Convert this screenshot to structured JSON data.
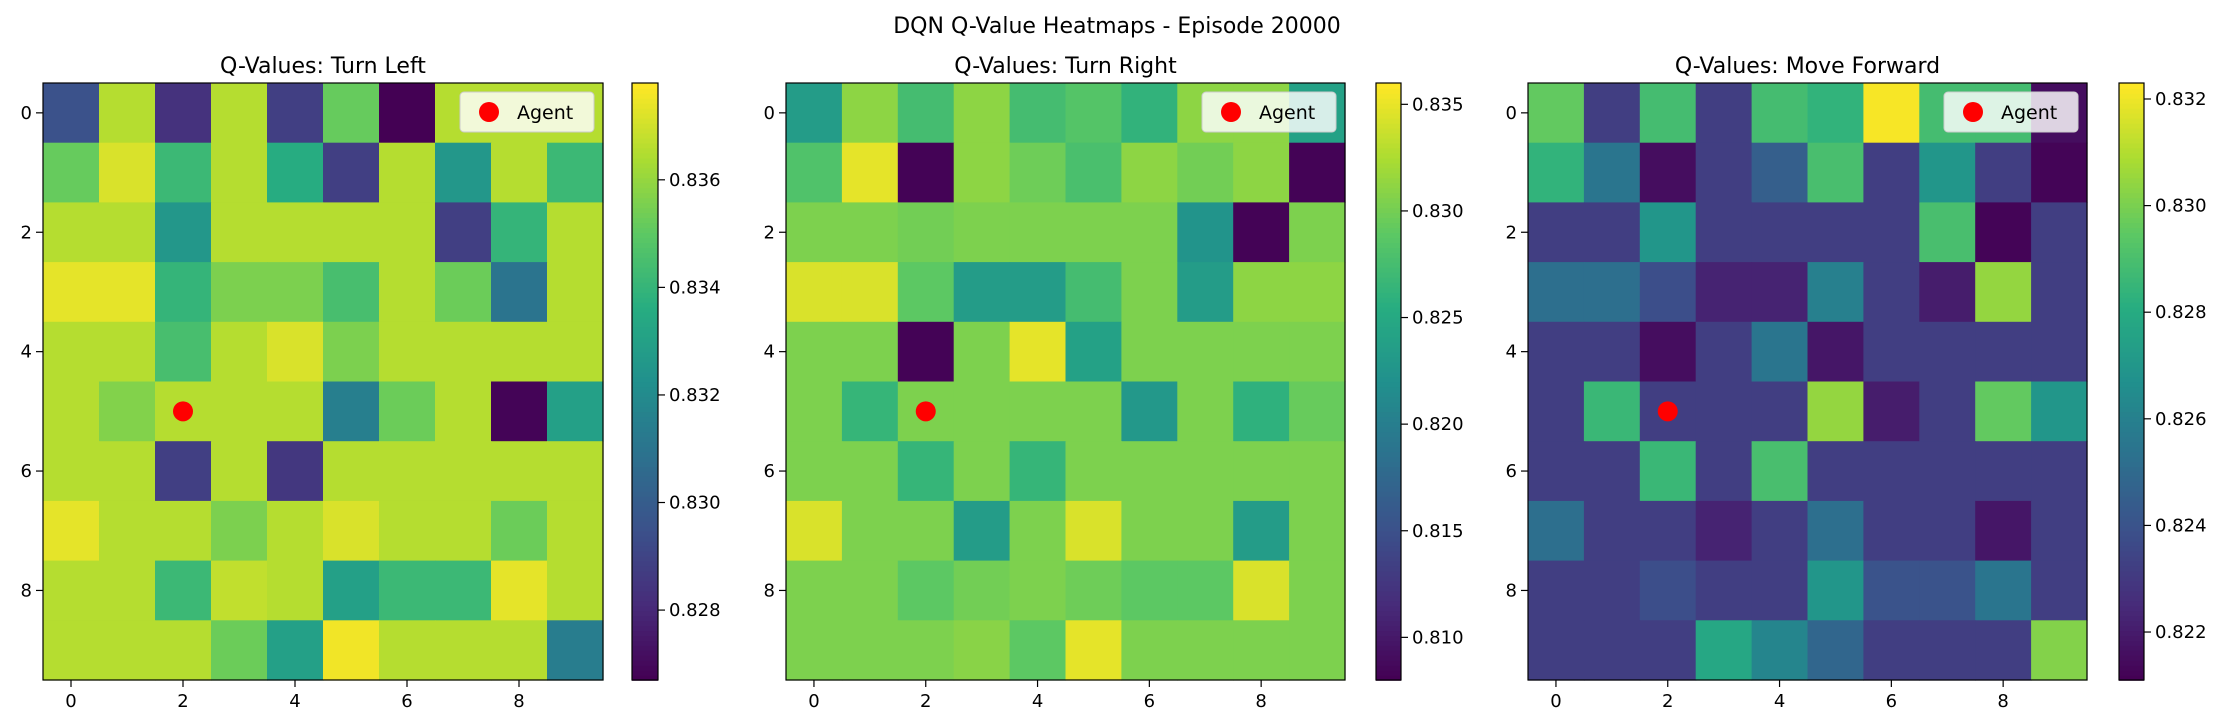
{
  "suptitle": "DQN Q-Value Heatmaps - Episode 20000",
  "legend_label": "Agent",
  "agent_color": "#ff0000",
  "colormap": "viridis",
  "chart_data": [
    {
      "type": "heatmap",
      "title": "Q-Values: Turn Left",
      "x_ticks": [
        0,
        2,
        4,
        6,
        8
      ],
      "y_ticks": [
        0,
        2,
        4,
        6,
        8
      ],
      "xlim": [
        -0.5,
        9.5
      ],
      "ylim": [
        9.5,
        -0.5
      ],
      "agent": {
        "x": 2,
        "y": 5
      },
      "legend_position": "top-right",
      "colorbar": {
        "vmin": 0.8267,
        "vmax": 0.8378,
        "ticks": [
          0.828,
          0.83,
          0.832,
          0.834,
          0.836
        ],
        "tick_labels": [
          "0.828",
          "0.830",
          "0.832",
          "0.834",
          "0.836"
        ]
      },
      "values": [
        [
          0.8295,
          0.8366,
          0.8283,
          0.8366,
          0.8288,
          0.8352,
          0.8267,
          0.8366,
          0.8366,
          0.8366
        ],
        [
          0.8352,
          0.8372,
          0.8342,
          0.8366,
          0.8336,
          0.8288,
          0.8366,
          0.8326,
          0.8366,
          0.8342
        ],
        [
          0.8366,
          0.8366,
          0.8326,
          0.8366,
          0.8366,
          0.8366,
          0.8366,
          0.8288,
          0.834,
          0.8366
        ],
        [
          0.8374,
          0.8374,
          0.834,
          0.8356,
          0.8356,
          0.8345,
          0.8366,
          0.8353,
          0.831,
          0.8366
        ],
        [
          0.8366,
          0.8366,
          0.8345,
          0.8366,
          0.8372,
          0.8356,
          0.8366,
          0.8366,
          0.8366,
          0.8366
        ],
        [
          0.8366,
          0.8357,
          0.8366,
          0.8366,
          0.8366,
          0.8315,
          0.8353,
          0.8366,
          0.8268,
          0.833
        ],
        [
          0.8366,
          0.8366,
          0.8288,
          0.8366,
          0.8285,
          0.8366,
          0.8366,
          0.8366,
          0.8366,
          0.8366
        ],
        [
          0.8374,
          0.8366,
          0.8366,
          0.8356,
          0.8366,
          0.8372,
          0.8366,
          0.8366,
          0.8353,
          0.8366
        ],
        [
          0.8366,
          0.8366,
          0.8342,
          0.8368,
          0.8366,
          0.833,
          0.8342,
          0.8342,
          0.8374,
          0.8366
        ],
        [
          0.8366,
          0.8366,
          0.8366,
          0.8353,
          0.833,
          0.8376,
          0.8366,
          0.8366,
          0.8366,
          0.8314
        ]
      ]
    },
    {
      "type": "heatmap",
      "title": "Q-Values: Turn Right",
      "x_ticks": [
        0,
        2,
        4,
        6,
        8
      ],
      "y_ticks": [
        0,
        2,
        4,
        6,
        8
      ],
      "xlim": [
        -0.5,
        9.5
      ],
      "ylim": [
        9.5,
        -0.5
      ],
      "agent": {
        "x": 2,
        "y": 5
      },
      "legend_position": "top-right",
      "colorbar": {
        "vmin": 0.808,
        "vmax": 0.836,
        "ticks": [
          0.81,
          0.815,
          0.82,
          0.825,
          0.83,
          0.835
        ],
        "tick_labels": [
          "0.810",
          "0.815",
          "0.820",
          "0.825",
          "0.830",
          "0.835"
        ]
      },
      "values": [
        [
          0.8235,
          0.8312,
          0.8275,
          0.8312,
          0.8275,
          0.8285,
          0.8262,
          0.8312,
          0.8312,
          0.824
        ],
        [
          0.8282,
          0.835,
          0.8082,
          0.8312,
          0.8298,
          0.8278,
          0.8312,
          0.83,
          0.8312,
          0.8082
        ],
        [
          0.8305,
          0.8305,
          0.83,
          0.8305,
          0.8305,
          0.8305,
          0.8305,
          0.8225,
          0.8082,
          0.8305
        ],
        [
          0.8345,
          0.8345,
          0.829,
          0.8235,
          0.8235,
          0.8275,
          0.8305,
          0.8235,
          0.8312,
          0.8312
        ],
        [
          0.8305,
          0.8305,
          0.8082,
          0.8305,
          0.835,
          0.824,
          0.8305,
          0.8305,
          0.8305,
          0.8305
        ],
        [
          0.8305,
          0.8265,
          0.8305,
          0.8305,
          0.8305,
          0.8305,
          0.823,
          0.8305,
          0.826,
          0.8295
        ],
        [
          0.8305,
          0.8305,
          0.8265,
          0.8305,
          0.8265,
          0.8305,
          0.8305,
          0.8305,
          0.8305,
          0.8305
        ],
        [
          0.8345,
          0.8305,
          0.8305,
          0.8235,
          0.8305,
          0.8345,
          0.8305,
          0.8305,
          0.8235,
          0.8305
        ],
        [
          0.8305,
          0.8305,
          0.829,
          0.83,
          0.8305,
          0.8298,
          0.829,
          0.829,
          0.8345,
          0.8305
        ],
        [
          0.8305,
          0.8305,
          0.8305,
          0.831,
          0.829,
          0.835,
          0.8305,
          0.8305,
          0.8305,
          0.8305
        ]
      ]
    },
    {
      "type": "heatmap",
      "title": "Q-Values: Move Forward",
      "x_ticks": [
        0,
        2,
        4,
        6,
        8
      ],
      "y_ticks": [
        0,
        2,
        4,
        6,
        8
      ],
      "xlim": [
        -0.5,
        9.5
      ],
      "ylim": [
        9.5,
        -0.5
      ],
      "agent": {
        "x": 2,
        "y": 5
      },
      "legend_position": "top-right",
      "colorbar": {
        "vmin": 0.8211,
        "vmax": 0.8323,
        "ticks": [
          0.822,
          0.824,
          0.826,
          0.828,
          0.83,
          0.832
        ],
        "tick_labels": [
          "0.822",
          "0.824",
          "0.826",
          "0.828",
          "0.830",
          "0.832"
        ]
      },
      "values": [
        [
          0.8296,
          0.8232,
          0.8289,
          0.8232,
          0.8289,
          0.8284,
          0.8322,
          0.8289,
          0.8289,
          0.8215
        ],
        [
          0.8284,
          0.8255,
          0.8215,
          0.8232,
          0.8245,
          0.829,
          0.8232,
          0.827,
          0.8232,
          0.8212
        ],
        [
          0.8232,
          0.8232,
          0.827,
          0.8232,
          0.8232,
          0.8232,
          0.8232,
          0.829,
          0.8212,
          0.8232
        ],
        [
          0.8252,
          0.8252,
          0.8238,
          0.8222,
          0.8222,
          0.826,
          0.8232,
          0.822,
          0.8305,
          0.8232
        ],
        [
          0.8232,
          0.8232,
          0.8215,
          0.8232,
          0.8255,
          0.8218,
          0.8232,
          0.8232,
          0.8232,
          0.8232
        ],
        [
          0.8232,
          0.8286,
          0.8232,
          0.8232,
          0.8232,
          0.8305,
          0.822,
          0.8232,
          0.8296,
          0.827
        ],
        [
          0.8232,
          0.8232,
          0.8286,
          0.8232,
          0.829,
          0.8232,
          0.8232,
          0.8232,
          0.8232,
          0.8232
        ],
        [
          0.8252,
          0.8232,
          0.8232,
          0.8222,
          0.8232,
          0.8252,
          0.8232,
          0.8232,
          0.8218,
          0.8232
        ],
        [
          0.8232,
          0.8232,
          0.8238,
          0.8232,
          0.8232,
          0.827,
          0.824,
          0.824,
          0.8255,
          0.8232
        ],
        [
          0.8232,
          0.8232,
          0.8232,
          0.8278,
          0.8262,
          0.8248,
          0.8232,
          0.8232,
          0.8232,
          0.8302
        ]
      ]
    }
  ]
}
